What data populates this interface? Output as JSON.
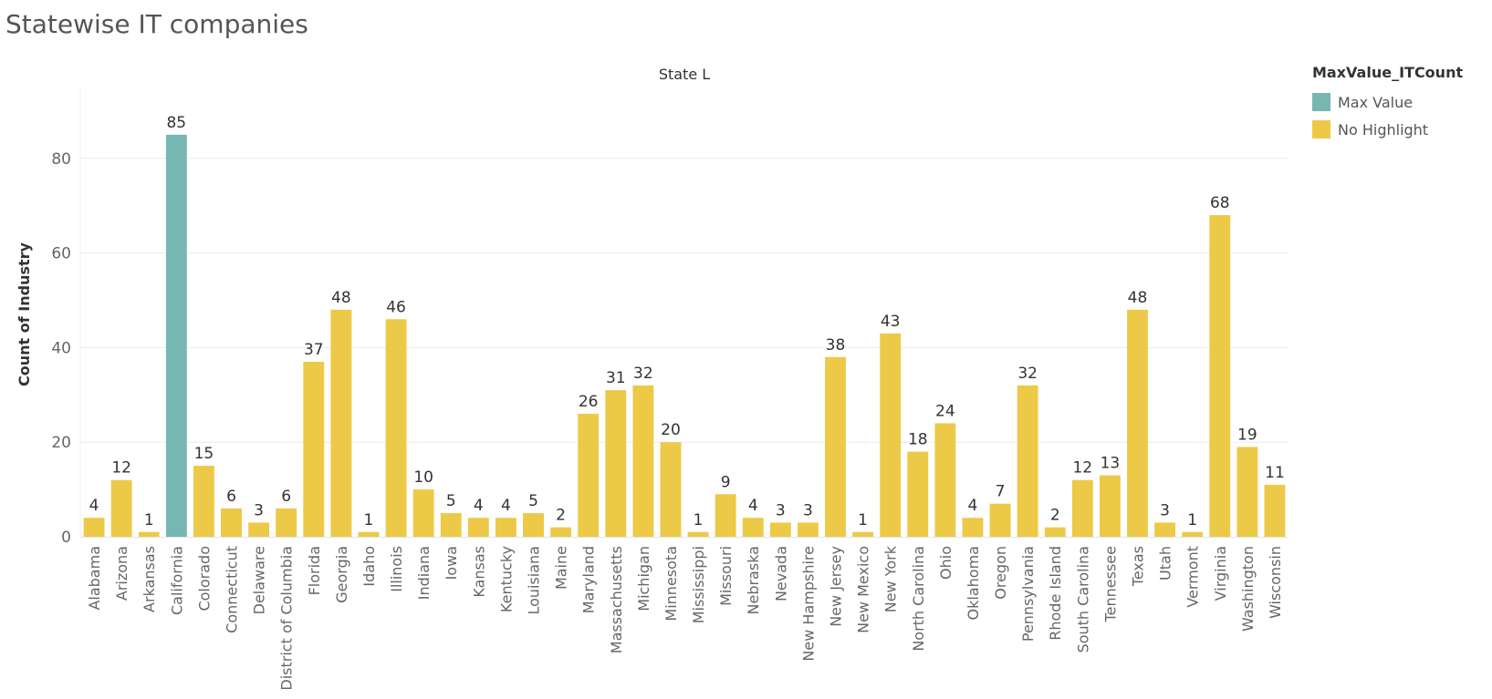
{
  "title": "Statewise IT companies",
  "colors": {
    "max": "#76b7b2",
    "normal": "#edc948",
    "grid": "#ececec",
    "axisText": "#666666"
  },
  "legend": {
    "title": "MaxValue_ITCount",
    "items": [
      {
        "label": "Max Value",
        "color": "#76b7b2"
      },
      {
        "label": "No Highlight",
        "color": "#edc948"
      }
    ]
  },
  "chart_data": {
    "type": "bar",
    "title": "Statewise IT companies",
    "header": "State L",
    "xlabel": "",
    "ylabel": "Count of Industry",
    "ylim": [
      0,
      92
    ],
    "yticks": [
      0,
      20,
      40,
      60,
      80
    ],
    "grid": true,
    "legend_position": "top-right",
    "categories": [
      "Alabama",
      "Arizona",
      "Arkansas",
      "California",
      "Colorado",
      "Connecticut",
      "Delaware",
      "District of Columbia",
      "Florida",
      "Georgia",
      "Idaho",
      "Illinois",
      "Indiana",
      "Iowa",
      "Kansas",
      "Kentucky",
      "Louisiana",
      "Maine",
      "Maryland",
      "Massachusetts",
      "Michigan",
      "Minnesota",
      "Mississippi",
      "Missouri",
      "Nebraska",
      "Nevada",
      "New Hampshire",
      "New Jersey",
      "New Mexico",
      "New York",
      "North Carolina",
      "Ohio",
      "Oklahoma",
      "Oregon",
      "Pennsylvania",
      "Rhode Island",
      "South Carolina",
      "Tennessee",
      "Texas",
      "Utah",
      "Vermont",
      "Virginia",
      "Washington",
      "Wisconsin"
    ],
    "values": [
      4,
      12,
      1,
      85,
      15,
      6,
      3,
      6,
      37,
      48,
      1,
      46,
      10,
      5,
      4,
      4,
      5,
      2,
      26,
      31,
      32,
      20,
      1,
      9,
      4,
      3,
      3,
      38,
      1,
      43,
      18,
      24,
      4,
      7,
      32,
      2,
      12,
      13,
      48,
      3,
      1,
      68,
      19,
      11
    ],
    "highlight": [
      "No Highlight",
      "No Highlight",
      "No Highlight",
      "Max Value",
      "No Highlight",
      "No Highlight",
      "No Highlight",
      "No Highlight",
      "No Highlight",
      "No Highlight",
      "No Highlight",
      "No Highlight",
      "No Highlight",
      "No Highlight",
      "No Highlight",
      "No Highlight",
      "No Highlight",
      "No Highlight",
      "No Highlight",
      "No Highlight",
      "No Highlight",
      "No Highlight",
      "No Highlight",
      "No Highlight",
      "No Highlight",
      "No Highlight",
      "No Highlight",
      "No Highlight",
      "No Highlight",
      "No Highlight",
      "No Highlight",
      "No Highlight",
      "No Highlight",
      "No Highlight",
      "No Highlight",
      "No Highlight",
      "No Highlight",
      "No Highlight",
      "No Highlight",
      "No Highlight",
      "No Highlight",
      "No Highlight",
      "No Highlight",
      "No Highlight"
    ]
  }
}
